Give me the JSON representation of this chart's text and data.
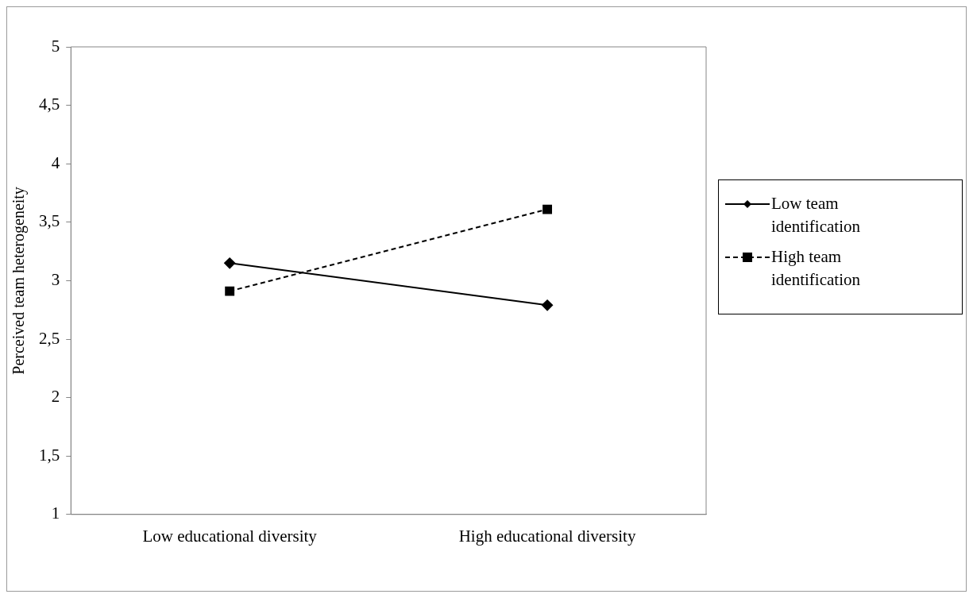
{
  "chart_data": {
    "type": "line",
    "ylabel": "Perceived team heterogeneity",
    "categories": [
      "Low educational diversity",
      "High educational diversity"
    ],
    "series": [
      {
        "name": "Low team identification",
        "color": "#000000",
        "values": [
          3.15,
          2.79
        ],
        "marker": "diamond",
        "line_style": "solid"
      },
      {
        "name": "High team identification",
        "color": "#000000",
        "values": [
          2.91,
          3.61
        ],
        "marker": "square",
        "line_style": "dashed"
      }
    ],
    "ylim": [
      1,
      5
    ],
    "yticks": [
      1,
      {
        "value": 1.5,
        "label": "1,5"
      },
      2,
      {
        "value": 2.5,
        "label": "2,5"
      },
      3,
      {
        "value": 3.5,
        "label": "3,5"
      },
      4,
      {
        "value": 4.5,
        "label": "4,5"
      },
      5
    ],
    "grid": false,
    "legend": "right"
  }
}
